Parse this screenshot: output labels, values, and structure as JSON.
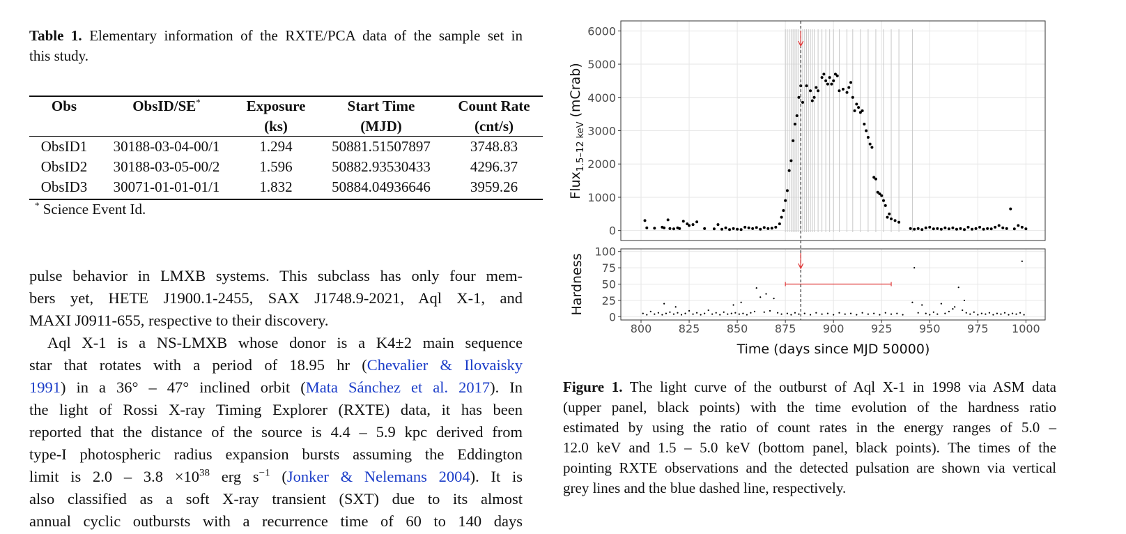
{
  "table_caption": {
    "label": "Table 1.",
    "lines": [
      " Elementary information of the RXTE/PCA data of the sample set in",
      "this study."
    ]
  },
  "table": {
    "header": [
      {
        "line1": "Obs"
      },
      {
        "line1": "ObsID/SE",
        "sup": "*"
      },
      {
        "line1": "Exposure",
        "line2": "(ks)"
      },
      {
        "line1": "Start Time",
        "line2": "(MJD)"
      },
      {
        "line1": "Count Rate",
        "line2": "(cnt/s)"
      }
    ],
    "rows": [
      [
        "ObsID1",
        "30188-03-04-00/1",
        "1.294",
        "50881.51507897",
        "3748.83"
      ],
      [
        "ObsID2",
        "30188-03-05-00/2",
        "1.596",
        "50882.93530433",
        "4296.37"
      ],
      [
        "ObsID3",
        "30071-01-01-01/1",
        "1.832",
        "50884.04936646",
        "3959.26"
      ]
    ],
    "footnote": {
      "mark": "*",
      "text": " Science Event Id."
    }
  },
  "body": {
    "p1": [
      [
        "pulse behavior in LMXB systems. This subclass has only four mem-"
      ],
      [
        "bers yet, HETE J1900.1-2455, SAX J1748.9-2021, Aql X-1, and"
      ],
      [
        "MAXI J0911-655, respective to their discovery."
      ]
    ],
    "p2": [
      [
        "Aql X-1 is a NS-LMXB whose donor is a K4±2 main sequence"
      ],
      [
        "star that rotates with a period of 18.95 hr (",
        "Chevalier & Ilovaisky"
      ],
      [
        "1991",
        ") in a 36° – 47° inclined orbit (",
        "Mata Sánchez et al. 2017",
        "). In"
      ],
      [
        "the light of Rossi X-ray Timing Explorer (RXTE) data, it has been"
      ],
      [
        "reported that the distance of the source is 4.4 – 5.9 kpc derived from"
      ],
      [
        "type-I photospheric radius expansion bursts assuming the Eddington"
      ],
      [
        "limit is 2.0 – 3.8 ×10",
        "38",
        " erg s",
        "−1",
        " (",
        "Jonker & Nelemans 2004",
        "). It is"
      ],
      [
        "also classified as a soft X-ray transient (SXT) due to its almost"
      ],
      [
        "annual cyclic outbursts with a recurrence time of 60 to 140 days"
      ]
    ]
  },
  "figure_caption": {
    "label": "Figure 1.",
    "lines": [
      " The light curve of the outburst of Aql X-1 in 1998 via ASM data",
      "(upper panel, black points) with the time evolution of the hardness ratio",
      "estimated by using the ratio of count rates in the energy ranges of 5.0 –",
      "12.0 keV and 1.5 – 5.0 keV (bottom panel, black points). The times of the",
      "pointing RXTE observations and the detected pulsation are shown via vertical",
      "grey lines and the blue dashed line, respectively."
    ]
  },
  "chart_data": [
    {
      "type": "scatter",
      "ylabel": {
        "main": "Flux",
        "sub": "1.5–12 keV",
        "unit": " (mCrab)"
      },
      "color": "#000000",
      "xlim": [
        789.5,
        1010
      ],
      "ylim": [
        -300,
        6300
      ],
      "xticks": [
        800,
        825,
        850,
        875,
        900,
        925,
        950,
        975,
        1000
      ],
      "yticks": [
        0,
        1000,
        2000,
        3000,
        4000,
        5000,
        6000
      ],
      "grid": true,
      "x": [
        802,
        803,
        807,
        811,
        812,
        814,
        815,
        817,
        819,
        820,
        822,
        824,
        825,
        827,
        829,
        833,
        838,
        840,
        842,
        844,
        846,
        848,
        850,
        852,
        854,
        856,
        858,
        860,
        862,
        864,
        866,
        868,
        870,
        872,
        873,
        874,
        875,
        876,
        877,
        878,
        879,
        880,
        881,
        882,
        883,
        884,
        886,
        888,
        889,
        890,
        891,
        892,
        894,
        895,
        896,
        897,
        898,
        899,
        900,
        901,
        902,
        903,
        905,
        907,
        908,
        909,
        910,
        911,
        912,
        913,
        914,
        915,
        916,
        917,
        918,
        919,
        920,
        921,
        922,
        923,
        924,
        925,
        926,
        927,
        928,
        929,
        930,
        932,
        934,
        940,
        942,
        944,
        946,
        948,
        950,
        952,
        954,
        956,
        958,
        960,
        962,
        964,
        966,
        968,
        970,
        972,
        974,
        976,
        978,
        980,
        982,
        984,
        986,
        988,
        990,
        992,
        994,
        996,
        998,
        1000
      ],
      "values": [
        300,
        80,
        70,
        100,
        80,
        320,
        60,
        50,
        80,
        60,
        280,
        200,
        150,
        180,
        260,
        60,
        50,
        180,
        40,
        80,
        30,
        60,
        40,
        30,
        100,
        80,
        60,
        90,
        40,
        90,
        60,
        70,
        100,
        200,
        400,
        600,
        900,
        1200,
        1800,
        2100,
        2700,
        3200,
        3450,
        4000,
        4350,
        3850,
        4350,
        4200,
        3900,
        4000,
        4300,
        4200,
        4600,
        4700,
        4500,
        4400,
        4600,
        4400,
        4500,
        4700,
        4650,
        4200,
        4250,
        4150,
        4300,
        4450,
        4000,
        3600,
        3800,
        3700,
        3550,
        3600,
        3200,
        3000,
        2800,
        2600,
        2500,
        1600,
        1550,
        1150,
        1100,
        1050,
        900,
        750,
        400,
        500,
        350,
        300,
        250,
        60,
        40,
        60,
        30,
        80,
        100,
        50,
        60,
        40,
        80,
        50,
        80,
        40,
        60,
        30,
        100,
        40,
        60,
        100,
        40,
        60,
        50,
        100,
        150,
        80,
        60,
        650,
        50,
        150,
        100,
        50
      ],
      "observation_times": [
        875,
        876,
        877,
        878,
        879,
        880,
        881,
        882,
        883,
        884,
        885,
        886,
        887,
        888,
        889,
        890,
        892,
        894,
        896,
        898,
        900,
        903,
        907,
        910,
        914,
        918,
        922,
        926,
        930,
        934,
        941
      ],
      "observation_color": "#c8c8c8",
      "pulsation_time": 883,
      "pulsation_color": "#333333",
      "arrow_color": "#e03a3a"
    },
    {
      "type": "scatter",
      "ylabel": "Hardness",
      "xlabel": "Time (days since MJD 50000)",
      "color": "#000000",
      "xlim": [
        789.5,
        1010
      ],
      "ylim": [
        -5,
        104
      ],
      "xticks": [
        800,
        825,
        850,
        875,
        900,
        925,
        950,
        975,
        1000
      ],
      "yticks": [
        0,
        25,
        50,
        75,
        100
      ],
      "grid": true,
      "x": [
        801,
        803,
        805,
        807,
        809,
        811,
        812,
        813,
        815,
        817,
        818,
        819,
        821,
        823,
        825,
        827,
        829,
        831,
        833,
        835,
        837,
        839,
        841,
        843,
        845,
        847,
        848,
        849,
        851,
        852,
        853,
        855,
        857,
        859,
        860,
        862,
        864,
        865,
        867,
        869,
        871,
        873,
        876,
        878,
        880,
        882,
        885,
        888,
        891,
        894,
        897,
        900,
        903,
        906,
        909,
        912,
        915,
        918,
        921,
        924,
        927,
        930,
        933,
        936,
        941,
        942,
        944,
        946,
        948,
        950,
        952,
        954,
        956,
        958,
        960,
        962,
        963,
        965,
        967,
        968,
        969,
        971,
        973,
        975,
        977,
        979,
        981,
        983,
        985,
        987,
        989,
        991,
        993,
        995,
        997,
        998,
        999
      ],
      "values": [
        5,
        3,
        8,
        4,
        6,
        3,
        20,
        5,
        7,
        4,
        15,
        6,
        3,
        5,
        9,
        4,
        6,
        3,
        5,
        10,
        4,
        6,
        3,
        7,
        4,
        5,
        18,
        6,
        4,
        22,
        5,
        3,
        6,
        8,
        44,
        30,
        7,
        35,
        9,
        28,
        6,
        4,
        5,
        3,
        6,
        4,
        5,
        3,
        6,
        4,
        5,
        3,
        6,
        4,
        5,
        3,
        6,
        4,
        5,
        3,
        6,
        4,
        5,
        3,
        22,
        75,
        6,
        18,
        5,
        3,
        7,
        4,
        20,
        5,
        8,
        12,
        15,
        45,
        10,
        25,
        6,
        4,
        7,
        3,
        5,
        4,
        6,
        3,
        5,
        4,
        6,
        3,
        5,
        4,
        6,
        85,
        3
      ],
      "hardness_bar": {
        "y": 50,
        "x": [
          875,
          930
        ]
      },
      "bar_color": "#e03a3a"
    }
  ]
}
